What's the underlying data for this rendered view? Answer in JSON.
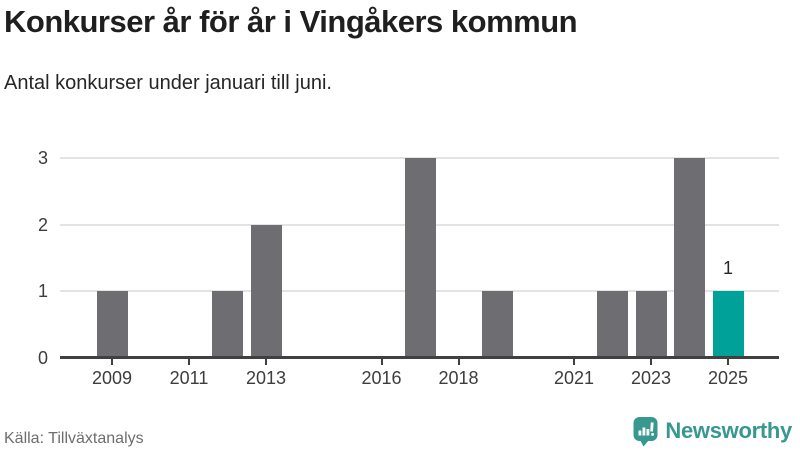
{
  "header": {
    "title": "Konkurser år för år i Vingåkers kommun",
    "subtitle": "Antal konkurser under januari till juni."
  },
  "footer": {
    "source": "Källa: Tillväxtanalys",
    "brand": "Newsworthy"
  },
  "icons": {
    "brand_logo": "newsworthy-speech-bubble-bar-chart-icon"
  },
  "chart_data": {
    "type": "bar",
    "title": "Konkurser år för år i Vingåkers kommun",
    "subtitle": "Antal konkurser under januari till juni.",
    "categories": [
      2008,
      2009,
      2010,
      2011,
      2012,
      2013,
      2014,
      2015,
      2016,
      2017,
      2018,
      2019,
      2020,
      2021,
      2022,
      2023,
      2024,
      2025
    ],
    "values": [
      0,
      1,
      0,
      0,
      1,
      2,
      0,
      0,
      0,
      3,
      0,
      1,
      0,
      0,
      1,
      1,
      3,
      1
    ],
    "highlight_category": 2025,
    "highlight_label": "1",
    "x_tick_labels": [
      "2009",
      "2011",
      "2013",
      "2016",
      "2018",
      "2021",
      "2023",
      "2025"
    ],
    "y_ticks": [
      0,
      1,
      2,
      3
    ],
    "ylim": [
      0,
      3
    ],
    "grid": true,
    "legend": "none",
    "xlabel": "",
    "ylabel": "",
    "colors": {
      "bar": "#6d6d72",
      "highlight": "#00a199",
      "gridline": "#e3e3e3",
      "axis": "#404040",
      "tick_label": "#3d3d3d",
      "value_label": "#262626",
      "brand_teal": "#37988f"
    }
  }
}
